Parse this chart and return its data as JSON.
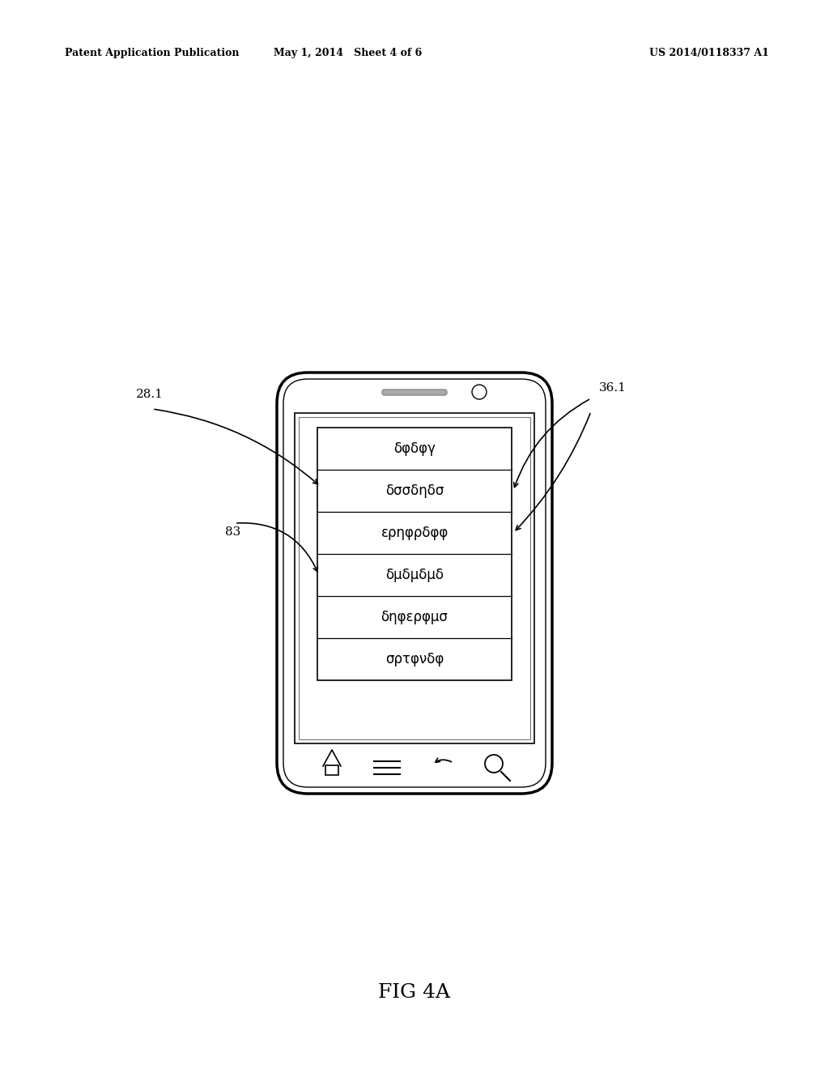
{
  "bg_color": "#ffffff",
  "header_left": "Patent Application Publication",
  "header_mid": "May 1, 2014   Sheet 4 of 6",
  "header_right": "US 2014/0118337 A1",
  "figure_label": "FIG 4A",
  "list_items": [
    "δφδφγ",
    "δσσδηδσ",
    "ερηφρδφφ",
    "δμδμδμδ",
    "δηφερφμσ",
    "σρτφνδφ"
  ],
  "label_281": "28.1",
  "label_361": "36.1",
  "label_83": "83",
  "line_color": "#000000"
}
